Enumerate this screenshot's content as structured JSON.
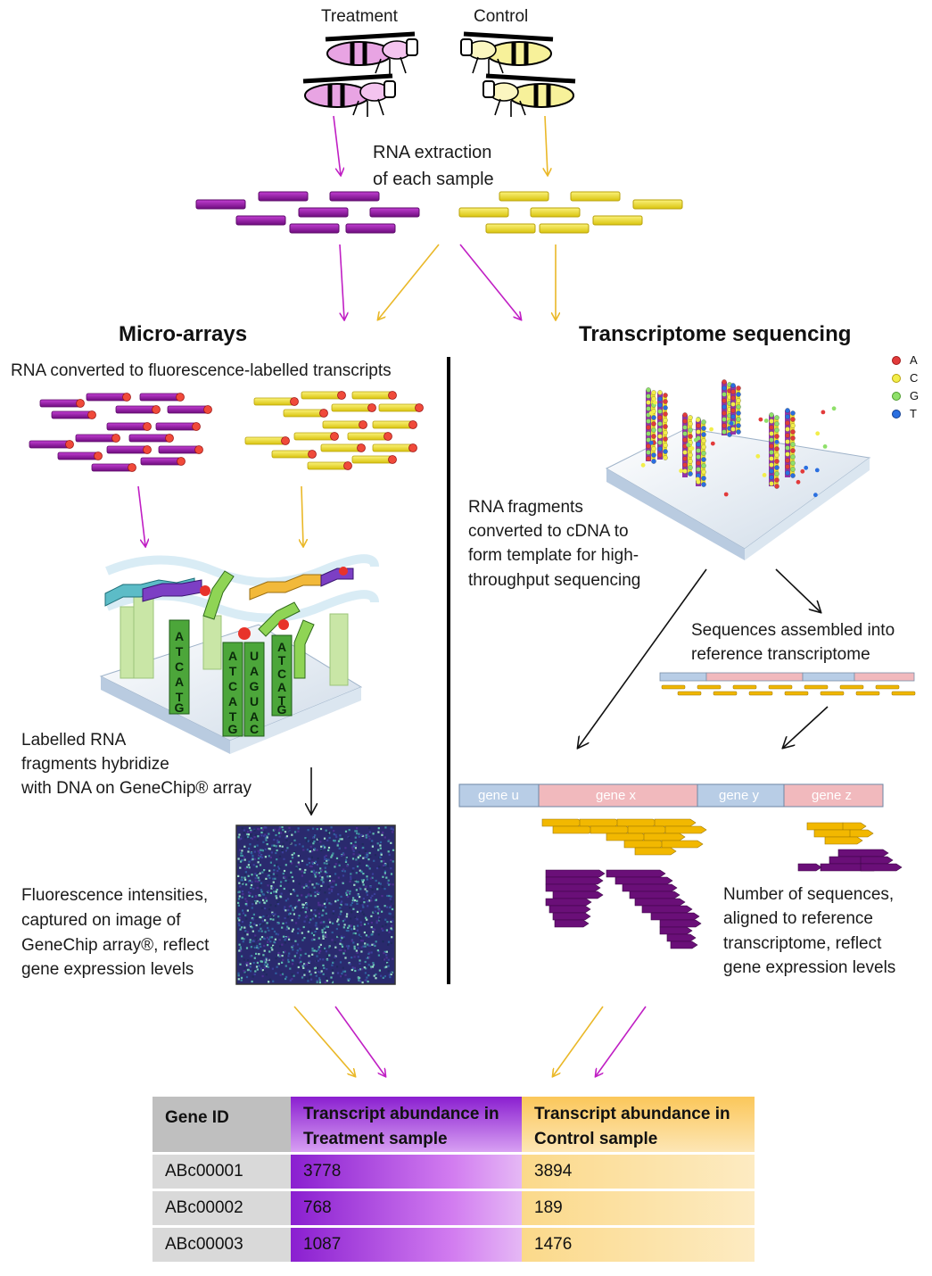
{
  "samples": {
    "treatment": "Treatment",
    "control": "Control"
  },
  "extraction": {
    "line1": "RNA extraction",
    "line2": "of each sample"
  },
  "microarray": {
    "heading": "Micro-arrays",
    "converted": "RNA converted to fluorescence-labelled transcripts",
    "hybridize": [
      "Labelled RNA",
      "fragments hybridize",
      "with DNA on GeneChip® array"
    ],
    "intensities": [
      "Fluorescence intensities,",
      "captured on image of",
      "GeneChip array®, reflect",
      "gene expression levels"
    ],
    "probe_letters_left": [
      "A",
      "T",
      "C",
      "A",
      "T",
      "G"
    ],
    "probe_letters_mid": [
      "A",
      "T",
      "C",
      "A",
      "T",
      "G"
    ],
    "probe_letters_mid2": [
      "U",
      "A",
      "G",
      "U",
      "A",
      "C"
    ],
    "probe_letters_right": [
      "A",
      "T",
      "C",
      "A",
      "T",
      "G"
    ]
  },
  "sequencing": {
    "heading": "Transcriptome sequencing",
    "fragments": [
      "RNA fragments",
      "converted  to cDNA to",
      "form template for high-",
      "throughput sequencing"
    ],
    "assembled": [
      "Sequences assembled into",
      "reference transcriptome"
    ],
    "aligned": [
      "Number of sequences,",
      "aligned to reference",
      "transcriptome, reflect",
      "gene expression levels"
    ],
    "genes": [
      "gene u",
      "gene x",
      "gene y",
      "gene z"
    ],
    "legend": [
      {
        "label": "A",
        "color": "#e23b3b"
      },
      {
        "label": "C",
        "color": "#f2ee4a"
      },
      {
        "label": "G",
        "color": "#8fe06a"
      },
      {
        "label": "T",
        "color": "#2a6fe0"
      }
    ]
  },
  "colors": {
    "treatment": "#8e1a9e",
    "control": "#f0e020",
    "gene_blue": "#b8cde6",
    "gene_pink": "#f1b9bd"
  },
  "table": {
    "headers": [
      "Gene ID",
      "Transcript abundance in Treatment sample",
      "Transcript abundance in Control sample"
    ],
    "header_tr": [
      "Transcript abundance in",
      "Treatment sample"
    ],
    "header_ct": [
      "Transcript abundance in",
      "Control sample"
    ],
    "rows": [
      {
        "id": "ABc00001",
        "treatment": "3778",
        "control": "3894"
      },
      {
        "id": "ABc00002",
        "treatment": "768",
        "control": "189"
      },
      {
        "id": "ABc00003",
        "treatment": "1087",
        "control": "1476"
      }
    ]
  }
}
